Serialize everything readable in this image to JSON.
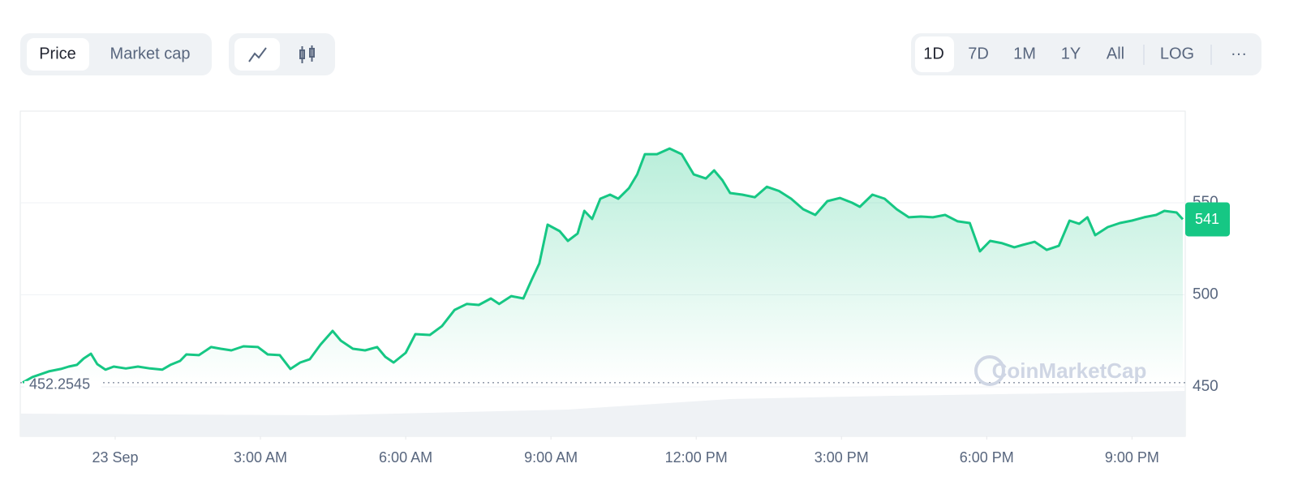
{
  "toolbar": {
    "views": [
      "Price",
      "Market cap"
    ],
    "ranges": [
      "1D",
      "7D",
      "1M",
      "1Y",
      "All"
    ],
    "scale": "LOG",
    "more": "···"
  },
  "watermark": "CoinMarketCap",
  "chart_data": {
    "type": "line",
    "color": "#16c784",
    "x": [
      -1.91,
      -1.71,
      -1.37,
      -1.12,
      -0.96,
      -0.79,
      -0.65,
      -0.5,
      -0.37,
      -0.2,
      -0.03,
      0.22,
      0.47,
      0.72,
      0.97,
      1.14,
      1.34,
      1.47,
      1.73,
      1.98,
      2.18,
      2.4,
      2.65,
      2.95,
      3.15,
      3.4,
      3.62,
      3.82,
      4.02,
      4.24,
      4.49,
      4.66,
      4.91,
      5.16,
      5.41,
      5.58,
      5.75,
      6.0,
      6.2,
      6.5,
      6.75,
      7.01,
      7.26,
      7.51,
      7.76,
      7.93,
      8.18,
      8.43,
      8.6,
      8.76,
      8.93,
      9.18,
      9.35,
      9.55,
      9.69,
      9.85,
      10.02,
      10.22,
      10.39,
      10.61,
      10.78,
      10.94,
      11.19,
      11.45,
      11.7,
      11.95,
      12.2,
      12.37,
      12.54,
      12.7,
      12.95,
      13.21,
      13.46,
      13.71,
      13.96,
      14.21,
      14.46,
      14.71,
      14.97,
      15.22,
      15.38,
      15.64,
      15.89,
      16.14,
      16.39,
      16.64,
      16.89,
      17.14,
      17.4,
      17.65,
      17.86,
      18.07,
      18.32,
      18.57,
      18.74,
      18.99,
      19.24,
      19.49,
      19.71,
      19.91,
      20.08,
      20.24,
      20.5,
      20.75,
      21.0,
      21.25,
      21.5,
      21.67,
      21.92,
      22.05
    ],
    "values": [
      452.3,
      455.3,
      458.4,
      459.7,
      461,
      461.9,
      465.4,
      468,
      462.3,
      459.3,
      461,
      460,
      461,
      460,
      459.3,
      461.9,
      464.1,
      467.6,
      467.2,
      471.6,
      470.7,
      469.8,
      472,
      471.6,
      467.6,
      467.2,
      459.7,
      463.2,
      465,
      472.9,
      480.4,
      475.1,
      470.7,
      469.8,
      471.6,
      466.3,
      463.2,
      468.5,
      478.6,
      478.2,
      483,
      491.8,
      495,
      494.5,
      498,
      495,
      499.3,
      498,
      508.1,
      517,
      538.1,
      534.6,
      529.3,
      533.3,
      545.6,
      541.2,
      552.2,
      554.4,
      552.2,
      557.9,
      565.4,
      576.4,
      576.4,
      579.5,
      576.4,
      565.4,
      563.2,
      567.6,
      562.3,
      555.3,
      554.4,
      553,
      558.7,
      556.4,
      552.2,
      546.5,
      543.4,
      550.9,
      552.6,
      550,
      547.8,
      554.4,
      552.2,
      546.5,
      542.1,
      542.5,
      542.1,
      543.4,
      539.9,
      539,
      523.6,
      529.3,
      528,
      525.8,
      527.1,
      528.8,
      524.4,
      526.6,
      540.3,
      538.6,
      542.1,
      532.4,
      536.8,
      539,
      540.3,
      542.1,
      543.4,
      545.6,
      544.7,
      541
    ],
    "current_price": 541,
    "reference": 452.2545,
    "xlim": [
      -1.96,
      22.1
    ],
    "xticks": [
      {
        "value": 0,
        "label": "23 Sep"
      },
      {
        "value": 3,
        "label": "3:00 AM"
      },
      {
        "value": 6,
        "label": "6:00 AM"
      },
      {
        "value": 9,
        "label": "9:00 AM"
      },
      {
        "value": 12,
        "label": "12:00 PM"
      },
      {
        "value": 15,
        "label": "3:00 PM"
      },
      {
        "value": 18,
        "label": "6:00 PM"
      },
      {
        "value": 21,
        "label": "9:00 PM"
      }
    ],
    "ylim": [
      423.1,
      599.8
    ],
    "yticks": [
      450,
      500,
      550
    ],
    "grid": true
  }
}
